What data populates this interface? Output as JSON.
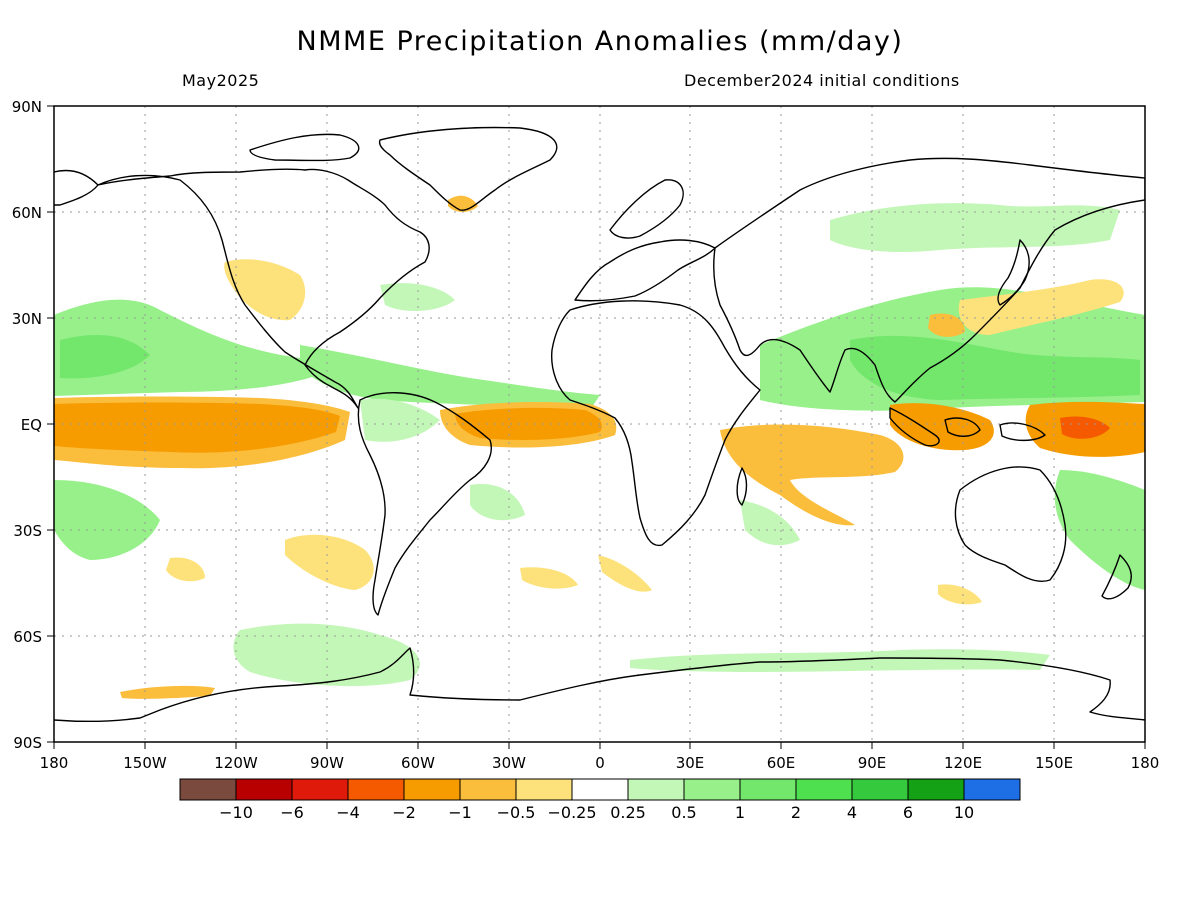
{
  "header": {
    "title": "NMME Precipitation Anomalies (mm/day)",
    "target_month": "May2025",
    "initial_conditions": "December2024 initial conditions"
  },
  "map": {
    "lat_labels": [
      "90N",
      "60N",
      "30N",
      "EQ",
      "30S",
      "60S",
      "90S"
    ],
    "lon_labels": [
      "180",
      "150W",
      "120W",
      "90W",
      "60W",
      "30W",
      "0",
      "30E",
      "60E",
      "90E",
      "120E",
      "150E",
      "180"
    ]
  },
  "colorbar": {
    "colors": [
      "#7a4a3e",
      "#b80000",
      "#e01a0a",
      "#f55a00",
      "#f79c00",
      "#fbbd3c",
      "#fde27c",
      "#ffffff",
      "#c3f7b7",
      "#97f08a",
      "#73e66c",
      "#4fe04f",
      "#35c93d",
      "#14a116",
      "#1e6ee6"
    ],
    "labels": [
      "−10",
      "−6",
      "−4",
      "−2",
      "−1",
      "−0.5",
      "−0.25",
      "0.25",
      "0.5",
      "1",
      "2",
      "4",
      "6",
      "10"
    ]
  },
  "palette": {
    "wet_light": "#c3f7b7",
    "wet_mid": "#97f08a",
    "wet_strong": "#73e66c",
    "dry_light": "#fde27c",
    "dry_mid": "#fbbd3c",
    "dry_strong": "#f79c00",
    "dry_extreme": "#f55a00",
    "coast": "#000000",
    "grid": "#9a9a9a"
  }
}
